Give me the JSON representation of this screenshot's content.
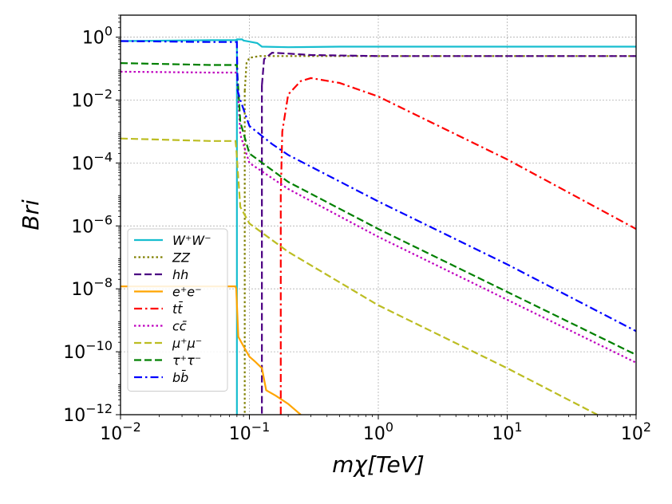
{
  "chart_data": {
    "type": "line",
    "xscale": "log",
    "yscale": "log",
    "xlim": [
      0.01,
      100
    ],
    "ylim": [
      1e-12,
      5
    ],
    "xlabel": "mχ[TeV]",
    "ylabel": "Bri",
    "grid": true,
    "x_ticks": [
      {
        "value": 0.01,
        "base": "10",
        "exp": "−2"
      },
      {
        "value": 0.1,
        "base": "10",
        "exp": "−1"
      },
      {
        "value": 1,
        "base": "10",
        "exp": "0"
      },
      {
        "value": 10,
        "base": "10",
        "exp": "1"
      },
      {
        "value": 100,
        "base": "10",
        "exp": "2"
      }
    ],
    "y_ticks": [
      {
        "value": 1,
        "base": "10",
        "exp": "0"
      },
      {
        "value": 0.01,
        "base": "10",
        "exp": "−2"
      },
      {
        "value": 0.0001,
        "base": "10",
        "exp": "−4"
      },
      {
        "value": 1e-06,
        "base": "10",
        "exp": "−6"
      },
      {
        "value": 1e-08,
        "base": "10",
        "exp": "−8"
      },
      {
        "value": 1e-10,
        "base": "10",
        "exp": "−10"
      },
      {
        "value": 1e-12,
        "base": "10",
        "exp": "−12"
      }
    ],
    "legend_position": "lower-left",
    "series": [
      {
        "name": "W⁺W⁻",
        "color": "#17becf",
        "dash": "solid",
        "points": [
          [
            0.01,
            0.75
          ],
          [
            0.05,
            0.8
          ],
          [
            0.078,
            0.8
          ],
          [
            0.08,
            0.85
          ],
          [
            0.088,
            0.85
          ],
          [
            0.09,
            0.78
          ],
          [
            0.1,
            0.72
          ],
          [
            0.115,
            0.65
          ],
          [
            0.125,
            0.5
          ],
          [
            0.2,
            0.48
          ],
          [
            0.5,
            0.5
          ],
          [
            1,
            0.5
          ],
          [
            100,
            0.5
          ]
        ],
        "vertical_drop": [
          0.08,
          0.8,
          1e-12
        ]
      },
      {
        "name": "ZZ",
        "color": "#808000",
        "dash": "dotted",
        "points": [
          [
            0.092,
            0.02
          ],
          [
            0.095,
            0.15
          ],
          [
            0.1,
            0.22
          ],
          [
            0.12,
            0.25
          ],
          [
            0.2,
            0.25
          ],
          [
            1,
            0.25
          ],
          [
            100,
            0.25
          ]
        ],
        "vertical_drop": [
          0.092,
          0.02,
          1e-12
        ]
      },
      {
        "name": "hh",
        "color": "#4b0082",
        "dash": "dashed",
        "points": [
          [
            0.125,
            0.03
          ],
          [
            0.13,
            0.2
          ],
          [
            0.15,
            0.32
          ],
          [
            0.2,
            0.3
          ],
          [
            0.3,
            0.27
          ],
          [
            1,
            0.25
          ],
          [
            100,
            0.25
          ]
        ],
        "vertical_drop": [
          0.125,
          0.03,
          1e-12
        ]
      },
      {
        "name": "e⁺e⁻",
        "color": "#ffa500",
        "dash": "solid",
        "points": [
          [
            0.01,
            1.2e-08
          ],
          [
            0.05,
            1.2e-08
          ],
          [
            0.078,
            1.2e-08
          ],
          [
            0.079,
            1e-08
          ],
          [
            0.082,
            3e-10
          ],
          [
            0.09,
            1.5e-10
          ],
          [
            0.1,
            7e-11
          ],
          [
            0.11,
            5e-11
          ],
          [
            0.125,
            3e-11
          ],
          [
            0.135,
            6e-12
          ],
          [
            0.16,
            4e-12
          ],
          [
            0.2,
            2.2e-12
          ],
          [
            0.25,
            1e-12
          ]
        ]
      },
      {
        "name": "tt̄",
        "color": "#ff0000",
        "dash": "dashdot",
        "points": [
          [
            0.175,
            1e-12
          ],
          [
            0.175,
            1e-05
          ],
          [
            0.18,
            0.001
          ],
          [
            0.2,
            0.015
          ],
          [
            0.25,
            0.04
          ],
          [
            0.3,
            0.05
          ],
          [
            0.5,
            0.035
          ],
          [
            1,
            0.013
          ],
          [
            10,
            0.00013
          ],
          [
            100,
            8e-07
          ]
        ]
      },
      {
        "name": "cc̄",
        "color": "#bf00bf",
        "dash": "dotted",
        "points": [
          [
            0.01,
            0.08
          ],
          [
            0.05,
            0.075
          ],
          [
            0.08,
            0.075
          ],
          [
            0.085,
            0.0008
          ],
          [
            0.1,
            0.0001
          ],
          [
            0.2,
            1.5e-05
          ],
          [
            1,
            4.5e-07
          ],
          [
            10,
            4.5e-09
          ],
          [
            100,
            4.5e-11
          ]
        ]
      },
      {
        "name": "μ⁺μ⁻",
        "color": "#bcbd22",
        "dash": "dashed",
        "points": [
          [
            0.01,
            0.0006
          ],
          [
            0.05,
            0.0005
          ],
          [
            0.078,
            0.0005
          ],
          [
            0.079,
            0.0003
          ],
          [
            0.085,
            4e-06
          ],
          [
            0.1,
            1.2e-06
          ],
          [
            0.2,
            1.5e-07
          ],
          [
            1,
            3e-09
          ],
          [
            10,
            3e-11
          ],
          [
            50,
            1e-12
          ]
        ]
      },
      {
        "name": "τ⁺τ⁻",
        "color": "#008000",
        "dash": "dashed",
        "points": [
          [
            0.01,
            0.15
          ],
          [
            0.05,
            0.13
          ],
          [
            0.08,
            0.13
          ],
          [
            0.085,
            0.002
          ],
          [
            0.1,
            0.0002
          ],
          [
            0.2,
            2.5e-05
          ],
          [
            1,
            8e-07
          ],
          [
            10,
            8e-09
          ],
          [
            100,
            8e-11
          ]
        ]
      },
      {
        "name": "bb̄",
        "color": "#0000ff",
        "dash": "dashdot",
        "points": [
          [
            0.01,
            0.75
          ],
          [
            0.05,
            0.7
          ],
          [
            0.08,
            0.7
          ],
          [
            0.081,
            0.02
          ],
          [
            0.085,
            0.01
          ],
          [
            0.1,
            0.0015
          ],
          [
            0.15,
            0.0004
          ],
          [
            0.2,
            0.00018
          ],
          [
            1,
            6e-06
          ],
          [
            10,
            6e-08
          ],
          [
            100,
            4.5e-10
          ]
        ]
      }
    ]
  }
}
